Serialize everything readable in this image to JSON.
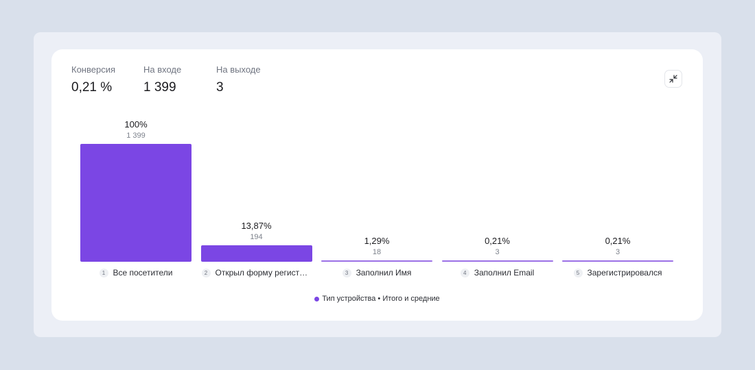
{
  "metrics": [
    {
      "label": "Конверсия",
      "value": "0,21 %"
    },
    {
      "label": "На входе",
      "value": "1 399"
    },
    {
      "label": "На выходе",
      "value": "3"
    }
  ],
  "collapse_button": {
    "icon": "collapse-arrows-icon"
  },
  "chart_data": {
    "type": "bar",
    "categories": [
      "Все посетители",
      "Открыл форму регистрац...",
      "Заполнил Имя",
      "Заполнил Email",
      "Зарегистрировался"
    ],
    "step_numbers": [
      "1",
      "2",
      "3",
      "4",
      "5"
    ],
    "percent_labels": [
      "100%",
      "13,87%",
      "1,29%",
      "0,21%",
      "0,21%"
    ],
    "count_labels": [
      "1 399",
      "194",
      "18",
      "3",
      "3"
    ],
    "values": [
      1399,
      194,
      18,
      3,
      3
    ],
    "series": [
      {
        "name": "Тип устройства • Итого и средние",
        "values": [
          1399,
          194,
          18,
          3,
          3
        ]
      }
    ],
    "ylim": [
      0,
      1399
    ],
    "legend": "bottom-center",
    "colors": {
      "bar": "#7b46e4",
      "thin_bar": "#9b6fe6"
    }
  },
  "legend": {
    "label": "Тип устройства • Итого и средние",
    "color": "#7b46e4"
  }
}
